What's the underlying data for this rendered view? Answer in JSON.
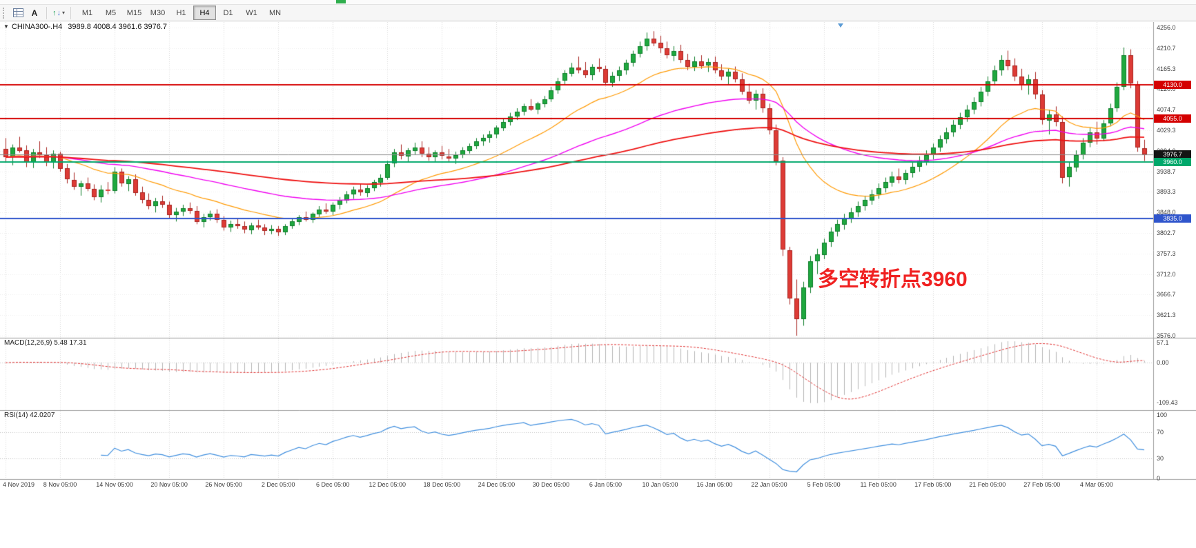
{
  "icons": {
    "symbol_marker": "▼",
    "dropdown_caret": "▾",
    "text_tool": "A",
    "arrow_up": "↑",
    "arrow_down": "↓"
  },
  "toolbar": {
    "timeframes": [
      "M1",
      "M5",
      "M15",
      "M30",
      "H1",
      "H4",
      "D1",
      "W1",
      "MN"
    ],
    "active_timeframe": "H4"
  },
  "chart_data": {
    "type": "candlestick",
    "symbol": "CHINA300-",
    "period": "H4",
    "symbol_period_text": "CHINA300-.H4",
    "ohlc_text": "3989.8 4008.4 3961.6 3976.7",
    "ohlc_current": {
      "open": 3989.8,
      "high": 4008.4,
      "low": 3961.6,
      "close": 3976.7
    },
    "y_range": [
      3576.0,
      4256.0
    ],
    "y_axis_labels": [
      "4256.0",
      "4210.7",
      "4165.3",
      "4120.0",
      "4074.7",
      "4029.3",
      "3984.0",
      "3938.7",
      "3893.3",
      "3848.0",
      "3802.7",
      "3757.3",
      "3712.0",
      "3666.7",
      "3621.3",
      "3576.0"
    ],
    "x_labels": [
      "4 Nov 2019",
      "8 Nov 05:00",
      "14 Nov 05:00",
      "20 Nov 05:00",
      "26 Nov 05:00",
      "2 Dec 05:00",
      "6 Dec 05:00",
      "12 Dec 05:00",
      "18 Dec 05:00",
      "24 Dec 05:00",
      "30 Dec 05:00",
      "6 Jan 05:00",
      "10 Jan 05:00",
      "16 Jan 05:00",
      "22 Jan 05:00",
      "5 Feb 05:00",
      "11 Feb 05:00",
      "17 Feb 05:00",
      "21 Feb 05:00",
      "27 Feb 05:00",
      "4 Mar 05:00"
    ],
    "x_label_every": 8,
    "candles": [
      [
        3988,
        4012,
        3958,
        3970
      ],
      [
        3970,
        3998,
        3952,
        3992
      ],
      [
        3992,
        4015,
        3980,
        3985
      ],
      [
        3985,
        3996,
        3948,
        3958
      ],
      [
        3958,
        3988,
        3946,
        3980
      ],
      [
        3980,
        4005,
        3968,
        3975
      ],
      [
        3975,
        3992,
        3950,
        3960
      ],
      [
        3960,
        3985,
        3945,
        3978
      ],
      [
        3978,
        3982,
        3938,
        3945
      ],
      [
        3945,
        3955,
        3912,
        3920
      ],
      [
        3920,
        3936,
        3898,
        3905
      ],
      [
        3905,
        3918,
        3885,
        3912
      ],
      [
        3912,
        3925,
        3895,
        3900
      ],
      [
        3900,
        3910,
        3875,
        3882
      ],
      [
        3882,
        3908,
        3870,
        3898
      ],
      [
        3898,
        3915,
        3888,
        3895
      ],
      [
        3895,
        3948,
        3890,
        3938
      ],
      [
        3938,
        3945,
        3905,
        3912
      ],
      [
        3912,
        3928,
        3895,
        3922
      ],
      [
        3922,
        3932,
        3885,
        3892
      ],
      [
        3892,
        3905,
        3868,
        3875
      ],
      [
        3875,
        3890,
        3855,
        3862
      ],
      [
        3862,
        3880,
        3848,
        3872
      ],
      [
        3872,
        3885,
        3858,
        3865
      ],
      [
        3865,
        3872,
        3835,
        3842
      ],
      [
        3842,
        3858,
        3828,
        3850
      ],
      [
        3850,
        3865,
        3840,
        3858
      ],
      [
        3858,
        3870,
        3845,
        3852
      ],
      [
        3852,
        3862,
        3822,
        3828
      ],
      [
        3828,
        3845,
        3815,
        3838
      ],
      [
        3838,
        3852,
        3830,
        3845
      ],
      [
        3845,
        3855,
        3825,
        3832
      ],
      [
        3832,
        3840,
        3808,
        3815
      ],
      [
        3815,
        3830,
        3805,
        3822
      ],
      [
        3822,
        3835,
        3812,
        3818
      ],
      [
        3818,
        3828,
        3802,
        3810
      ],
      [
        3810,
        3825,
        3800,
        3820
      ],
      [
        3820,
        3832,
        3810,
        3815
      ],
      [
        3815,
        3822,
        3798,
        3808
      ],
      [
        3808,
        3820,
        3800,
        3812
      ],
      [
        3812,
        3818,
        3796,
        3805
      ],
      [
        3805,
        3822,
        3798,
        3818
      ],
      [
        3818,
        3835,
        3812,
        3828
      ],
      [
        3828,
        3842,
        3820,
        3838
      ],
      [
        3838,
        3850,
        3828,
        3832
      ],
      [
        3832,
        3848,
        3825,
        3845
      ],
      [
        3845,
        3862,
        3838,
        3855
      ],
      [
        3855,
        3868,
        3845,
        3850
      ],
      [
        3850,
        3870,
        3842,
        3865
      ],
      [
        3865,
        3882,
        3855,
        3875
      ],
      [
        3875,
        3895,
        3868,
        3888
      ],
      [
        3888,
        3905,
        3878,
        3898
      ],
      [
        3898,
        3912,
        3885,
        3892
      ],
      [
        3892,
        3908,
        3882,
        3902
      ],
      [
        3902,
        3920,
        3895,
        3915
      ],
      [
        3915,
        3932,
        3905,
        3925
      ],
      [
        3925,
        3962,
        3920,
        3955
      ],
      [
        3955,
        3988,
        3948,
        3980
      ],
      [
        3980,
        3998,
        3965,
        3972
      ],
      [
        3972,
        3990,
        3958,
        3985
      ],
      [
        3985,
        4002,
        3975,
        3992
      ],
      [
        3992,
        4005,
        3970,
        3978
      ],
      [
        3978,
        3992,
        3962,
        3970
      ],
      [
        3970,
        3985,
        3958,
        3980
      ],
      [
        3980,
        3995,
        3965,
        3972
      ],
      [
        3972,
        3988,
        3960,
        3968
      ],
      [
        3968,
        3982,
        3955,
        3975
      ],
      [
        3975,
        3992,
        3968,
        3985
      ],
      [
        3985,
        4000,
        3978,
        3995
      ],
      [
        3995,
        4012,
        3988,
        4005
      ],
      [
        4005,
        4020,
        3995,
        4012
      ],
      [
        4012,
        4028,
        4002,
        4020
      ],
      [
        4020,
        4040,
        4012,
        4035
      ],
      [
        4035,
        4055,
        4028,
        4048
      ],
      [
        4048,
        4068,
        4040,
        4060
      ],
      [
        4060,
        4078,
        4052,
        4070
      ],
      [
        4070,
        4088,
        4062,
        4082
      ],
      [
        4082,
        4098,
        4072,
        4075
      ],
      [
        4075,
        4092,
        4065,
        4088
      ],
      [
        4088,
        4105,
        4080,
        4098
      ],
      [
        4098,
        4125,
        4092,
        4118
      ],
      [
        4118,
        4145,
        4110,
        4138
      ],
      [
        4138,
        4162,
        4130,
        4155
      ],
      [
        4155,
        4178,
        4148,
        4168
      ],
      [
        4168,
        4192,
        4155,
        4162
      ],
      [
        4162,
        4180,
        4145,
        4152
      ],
      [
        4152,
        4175,
        4140,
        4170
      ],
      [
        4170,
        4188,
        4158,
        4165
      ],
      [
        4165,
        4172,
        4128,
        4135
      ],
      [
        4135,
        4158,
        4125,
        4150
      ],
      [
        4150,
        4170,
        4138,
        4162
      ],
      [
        4162,
        4185,
        4152,
        4178
      ],
      [
        4178,
        4205,
        4170,
        4198
      ],
      [
        4198,
        4225,
        4190,
        4215
      ],
      [
        4215,
        4245,
        4205,
        4232
      ],
      [
        4232,
        4248,
        4215,
        4222
      ],
      [
        4222,
        4238,
        4200,
        4210
      ],
      [
        4210,
        4225,
        4188,
        4195
      ],
      [
        4195,
        4215,
        4182,
        4205
      ],
      [
        4205,
        4218,
        4178,
        4185
      ],
      [
        4185,
        4198,
        4162,
        4170
      ],
      [
        4170,
        4192,
        4160,
        4182
      ],
      [
        4182,
        4195,
        4165,
        4172
      ],
      [
        4172,
        4188,
        4158,
        4180
      ],
      [
        4180,
        4192,
        4155,
        4162
      ],
      [
        4162,
        4175,
        4140,
        4148
      ],
      [
        4148,
        4165,
        4130,
        4158
      ],
      [
        4158,
        4170,
        4135,
        4142
      ],
      [
        4142,
        4155,
        4108,
        4115
      ],
      [
        4115,
        4132,
        4088,
        4095
      ],
      [
        4095,
        4118,
        4075,
        4110
      ],
      [
        4110,
        4122,
        4068,
        4078
      ],
      [
        4078,
        4088,
        4020,
        4030
      ],
      [
        4030,
        4042,
        3952,
        3962
      ],
      [
        3962,
        3970,
        3752,
        3765
      ],
      [
        3765,
        3772,
        3645,
        3658
      ],
      [
        3658,
        3700,
        3576,
        3612
      ],
      [
        3612,
        3695,
        3598,
        3682
      ],
      [
        3682,
        3752,
        3670,
        3740
      ],
      [
        3740,
        3768,
        3712,
        3755
      ],
      [
        3755,
        3790,
        3745,
        3782
      ],
      [
        3782,
        3815,
        3772,
        3805
      ],
      [
        3805,
        3832,
        3795,
        3822
      ],
      [
        3822,
        3845,
        3810,
        3835
      ],
      [
        3835,
        3858,
        3825,
        3848
      ],
      [
        3848,
        3872,
        3838,
        3862
      ],
      [
        3862,
        3885,
        3852,
        3875
      ],
      [
        3875,
        3898,
        3865,
        3888
      ],
      [
        3888,
        3912,
        3878,
        3902
      ],
      [
        3902,
        3925,
        3892,
        3915
      ],
      [
        3915,
        3938,
        3905,
        3928
      ],
      [
        3928,
        3945,
        3912,
        3920
      ],
      [
        3920,
        3942,
        3910,
        3935
      ],
      [
        3935,
        3958,
        3925,
        3948
      ],
      [
        3948,
        3972,
        3938,
        3962
      ],
      [
        3962,
        3985,
        3952,
        3975
      ],
      [
        3975,
        4000,
        3965,
        3992
      ],
      [
        3992,
        4018,
        3982,
        4010
      ],
      [
        4010,
        4035,
        4000,
        4025
      ],
      [
        4025,
        4052,
        4015,
        4042
      ],
      [
        4042,
        4068,
        4032,
        4058
      ],
      [
        4058,
        4085,
        4048,
        4075
      ],
      [
        4075,
        4102,
        4065,
        4092
      ],
      [
        4092,
        4125,
        4082,
        4115
      ],
      [
        4115,
        4148,
        4105,
        4138
      ],
      [
        4138,
        4172,
        4128,
        4162
      ],
      [
        4162,
        4195,
        4150,
        4185
      ],
      [
        4185,
        4205,
        4162,
        4172
      ],
      [
        4172,
        4188,
        4138,
        4148
      ],
      [
        4148,
        4165,
        4118,
        4128
      ],
      [
        4128,
        4152,
        4108,
        4142
      ],
      [
        4142,
        4158,
        4098,
        4108
      ],
      [
        4108,
        4118,
        4042,
        4052
      ],
      [
        4052,
        4075,
        4020,
        4065
      ],
      [
        4065,
        4082,
        4038,
        4048
      ],
      [
        4048,
        4060,
        3912,
        3925
      ],
      [
        3925,
        3958,
        3905,
        3948
      ],
      [
        3948,
        3985,
        3938,
        3975
      ],
      [
        3975,
        4012,
        3965,
        4002
      ],
      [
        4002,
        4035,
        3992,
        4025
      ],
      [
        4025,
        4048,
        3998,
        4012
      ],
      [
        4012,
        4052,
        4005,
        4045
      ],
      [
        4045,
        4088,
        4038,
        4078
      ],
      [
        4078,
        4135,
        4070,
        4125
      ],
      [
        4125,
        4212,
        4118,
        4195
      ],
      [
        4195,
        4208,
        4122,
        4132
      ],
      [
        4132,
        4138,
        3982,
        3992
      ],
      [
        3989.8,
        4008.4,
        3961.6,
        3976.7
      ]
    ],
    "moving_averages": [
      {
        "period": 20,
        "color": "#ff9900",
        "width": 1.2
      },
      {
        "period": 55,
        "color": "#f000f0",
        "width": 1.4
      },
      {
        "period": 120,
        "color": "#ee1111",
        "width": 1.8
      }
    ],
    "levels": [
      {
        "price": 4130.0,
        "label": "4130.0",
        "line_color": "#d40000",
        "tag_bg": "#d40000",
        "width": 2,
        "role": "resistance"
      },
      {
        "price": 4055.0,
        "label": "4055.0",
        "line_color": "#d40000",
        "tag_bg": "#d40000",
        "width": 2,
        "role": "resistance"
      },
      {
        "price": 3976.7,
        "label": "3976.7",
        "line_color": "#8c8c8c",
        "tag_bg": "#141414",
        "width": 1,
        "role": "current-price"
      },
      {
        "price": 3960.0,
        "label": "3960.0",
        "line_color": "#00a86b",
        "tag_bg": "#00a86b",
        "width": 2,
        "role": "pivot"
      },
      {
        "price": 3835.0,
        "label": "3835.0",
        "line_color": "#2f55cc",
        "tag_bg": "#2f55cc",
        "width": 2,
        "role": "support"
      }
    ],
    "macd": {
      "header_text": "MACD(12,26,9) 5.48 17.31",
      "fast": 12,
      "slow": 26,
      "signal": 9,
      "main_value": 5.48,
      "signal_value": 17.31,
      "axis_labels": [
        "57.1",
        "0.00",
        "-109.43"
      ],
      "range": [
        -109.43,
        57.1
      ]
    },
    "rsi": {
      "header_text": "RSI(14) 42.0207",
      "period": 14,
      "value": 42.0207,
      "axis_labels": [
        "100",
        "70",
        "30",
        "0"
      ],
      "guides": [
        70,
        30
      ]
    },
    "annotations": [
      {
        "text": "多空转折点3960",
        "color": "#f02121"
      }
    ],
    "colors": {
      "background": "#ffffff",
      "grid": "#d8d8d8",
      "grid_h": "#ededed",
      "candle_up": "#1fa83f",
      "candle_up_stroke": "#0e7d2a",
      "candle_down": "#dd3b36",
      "candle_down_stroke": "#a82420",
      "macd_histogram": "#b4b4b4",
      "macd_signal": "#e03030",
      "rsi_line": "#3f8ede",
      "separator": "#9a9a9a",
      "axis_text": "#3a3a3a"
    }
  }
}
